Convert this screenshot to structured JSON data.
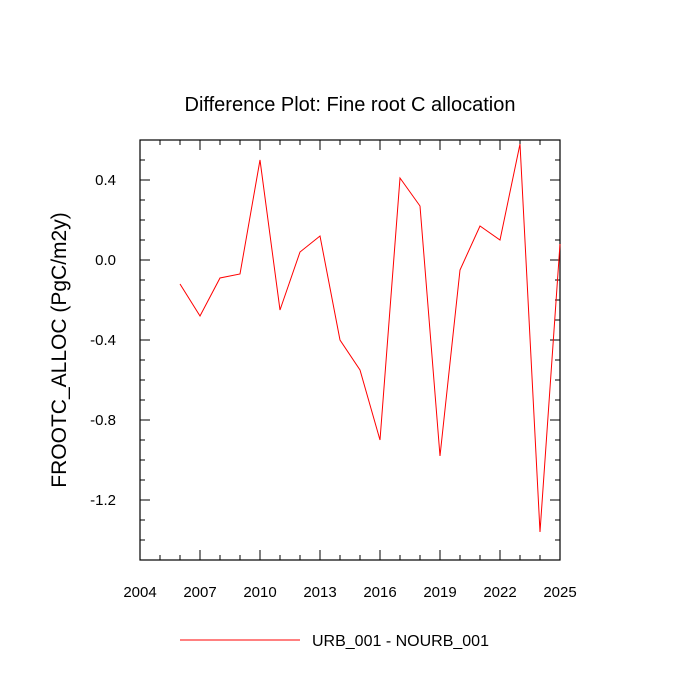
{
  "chart_data": {
    "type": "line",
    "title": "Difference Plot: Fine root C allocation",
    "xlabel": "",
    "ylabel": "FROOTC_ALLOC  (PgC/m2y)",
    "xlim": [
      2004,
      2025
    ],
    "ylim": [
      -1.5,
      0.6
    ],
    "x_ticks": [
      2004,
      2007,
      2010,
      2013,
      2016,
      2019,
      2022,
      2025
    ],
    "x_tick_labels": [
      "2004",
      "2007",
      "2010",
      "2013",
      "2016",
      "2019",
      "2022",
      "2025"
    ],
    "y_ticks": [
      0.4,
      0.0,
      -0.4,
      -0.8,
      -1.2
    ],
    "y_tick_labels": [
      "0.4",
      "0.0",
      "-0.4",
      "-0.8",
      "-1.2"
    ],
    "grid": false,
    "legend_position": "bottom",
    "series": [
      {
        "name": "URB_001 - NOURB_001",
        "color": "#ff0000",
        "x": [
          2006,
          2007,
          2008,
          2009,
          2010,
          2011,
          2012,
          2013,
          2014,
          2015,
          2016,
          2017,
          2018,
          2019,
          2020,
          2021,
          2022,
          2023,
          2024,
          2025
        ],
        "y": [
          -0.12,
          -0.28,
          -0.09,
          -0.07,
          0.5,
          -0.25,
          0.04,
          0.12,
          -0.4,
          -0.55,
          -0.9,
          0.41,
          0.27,
          -0.98,
          -0.05,
          0.17,
          0.1,
          0.58,
          -1.36,
          0.08
        ]
      }
    ]
  }
}
